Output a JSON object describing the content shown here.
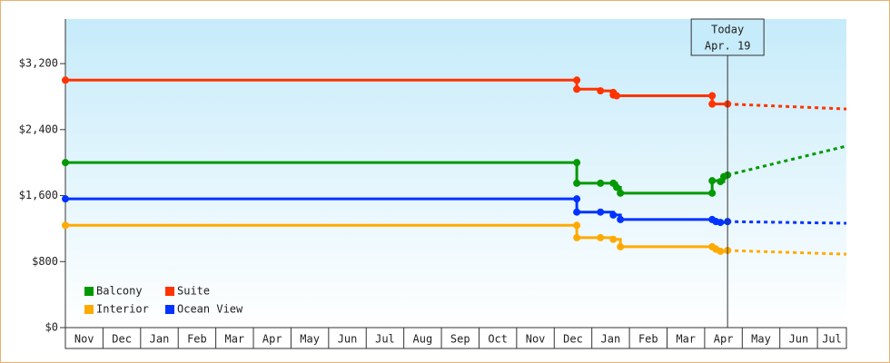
{
  "chart_data": {
    "type": "step-line",
    "xlim": [
      0,
      20.77
    ],
    "ylim": [
      0,
      3740
    ],
    "xticks": [
      {
        "value": 0.5,
        "label": "Nov"
      },
      {
        "value": 1.5,
        "label": "Dec"
      },
      {
        "value": 2.5,
        "label": "Jan"
      },
      {
        "value": 3.5,
        "label": "Feb"
      },
      {
        "value": 4.5,
        "label": "Mar"
      },
      {
        "value": 5.5,
        "label": "Apr"
      },
      {
        "value": 6.5,
        "label": "May"
      },
      {
        "value": 7.5,
        "label": "Jun"
      },
      {
        "value": 8.5,
        "label": "Jul"
      },
      {
        "value": 9.5,
        "label": "Aug"
      },
      {
        "value": 10.5,
        "label": "Sep"
      },
      {
        "value": 11.5,
        "label": "Oct"
      },
      {
        "value": 12.5,
        "label": "Nov"
      },
      {
        "value": 13.5,
        "label": "Dec"
      },
      {
        "value": 14.5,
        "label": "Jan"
      },
      {
        "value": 15.5,
        "label": "Feb"
      },
      {
        "value": 16.5,
        "label": "Mar"
      },
      {
        "value": 17.5,
        "label": "Apr"
      },
      {
        "value": 18.5,
        "label": "May"
      },
      {
        "value": 19.5,
        "label": "Jun"
      },
      {
        "value": 20.5,
        "label": "Jul"
      }
    ],
    "yticks": [
      {
        "value": 0,
        "label": "$0"
      },
      {
        "value": 800,
        "label": "$800"
      },
      {
        "value": 1600,
        "label": "$1,600"
      },
      {
        "value": 2400,
        "label": "$2,400"
      },
      {
        "value": 3200,
        "label": "$3,200"
      }
    ],
    "today": {
      "x": 17.61,
      "label": "Today",
      "date": "Apr. 19"
    },
    "series": [
      {
        "name": "Balcony",
        "color": "#009900",
        "x": [
          0,
          13.6,
          13.6,
          14.23,
          14.57,
          14.66,
          14.76,
          17.2,
          17.2,
          17.42,
          17.51,
          17.61
        ],
        "values": [
          2000,
          2000,
          1750,
          1750,
          1750,
          1700,
          1630,
          1630,
          1780,
          1770,
          1830,
          1850
        ],
        "forecast_x": [
          17.61,
          20.77
        ],
        "forecast_values": [
          1850,
          2200
        ]
      },
      {
        "name": "Suite",
        "color": "#ff3300",
        "x": [
          0,
          13.6,
          13.6,
          14.23,
          14.57,
          14.57,
          14.66,
          17.2,
          17.2,
          17.61
        ],
        "values": [
          3000,
          3000,
          2890,
          2870,
          2850,
          2820,
          2810,
          2810,
          2710,
          2710
        ],
        "forecast_x": [
          17.61,
          20.77
        ],
        "forecast_values": [
          2710,
          2650
        ]
      },
      {
        "name": "Interior",
        "color": "#ffaa00",
        "x": [
          0,
          13.6,
          13.6,
          14.23,
          14.57,
          14.76,
          17.2,
          17.3,
          17.42,
          17.61
        ],
        "values": [
          1240,
          1240,
          1090,
          1090,
          1070,
          980,
          980,
          950,
          925,
          935
        ],
        "forecast_x": [
          17.61,
          20.77
        ],
        "forecast_values": [
          935,
          890
        ]
      },
      {
        "name": "Ocean View",
        "color": "#0033ff",
        "x": [
          0,
          13.6,
          13.6,
          14.23,
          14.57,
          14.76,
          17.2,
          17.3,
          17.42,
          17.61
        ],
        "values": [
          1560,
          1560,
          1400,
          1400,
          1365,
          1310,
          1310,
          1285,
          1275,
          1285
        ],
        "forecast_x": [
          17.61,
          20.77
        ],
        "forecast_values": [
          1285,
          1265
        ]
      }
    ]
  }
}
